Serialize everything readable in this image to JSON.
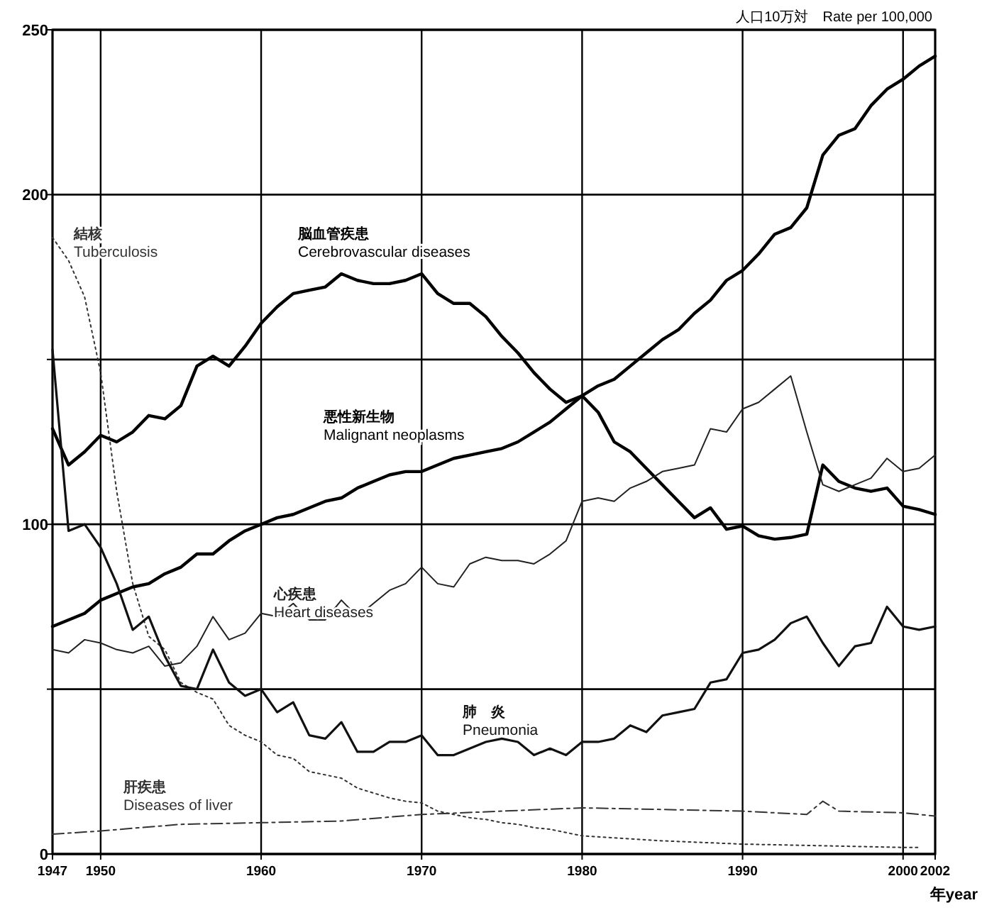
{
  "chart_data": {
    "type": "line",
    "ylabel": "人口10万対　Rate per 100,000",
    "xlabel": "年year",
    "xlim": [
      1947,
      2002
    ],
    "xticks": [
      1947,
      1950,
      1960,
      1970,
      1980,
      1990,
      2000,
      2002
    ],
    "ylim": [
      0,
      250
    ],
    "yticks": [
      0,
      {
        "value": 50,
        "label": null
      },
      100,
      {
        "value": 150,
        "label": null
      },
      200,
      250
    ],
    "grid": true,
    "legend": false,
    "marker": "none",
    "series": [
      {
        "name": "結核\nTuberculosis",
        "color": "#333333",
        "line_style": "dotted",
        "x": [
          1947,
          1948,
          1949,
          1950,
          1951,
          1952,
          1953,
          1954,
          1955,
          1956,
          1957,
          1958,
          1959,
          1960,
          1961,
          1962,
          1963,
          1964,
          1965,
          1966,
          1967,
          1968,
          1969,
          1970,
          1971,
          1972,
          1973,
          1974,
          1975,
          1976,
          1977,
          1978,
          1979,
          1980,
          1985,
          1990,
          1995,
          2000,
          2001
        ],
        "values": [
          187,
          180,
          169,
          146,
          110,
          82,
          66,
          62,
          52,
          49,
          47,
          39,
          36,
          34,
          30,
          29,
          25,
          24,
          23,
          20,
          18.5,
          17,
          16,
          15.5,
          13,
          12,
          11,
          10.5,
          9.5,
          9,
          8,
          7.5,
          6.5,
          5.5,
          4,
          3,
          2.5,
          2,
          2
        ]
      },
      {
        "name": "脳血管疾患\nCerebrovascular diseases",
        "color": "#000000",
        "line_style": "solid",
        "x": [
          1947,
          1948,
          1949,
          1950,
          1951,
          1952,
          1953,
          1954,
          1955,
          1956,
          1957,
          1958,
          1959,
          1960,
          1961,
          1962,
          1963,
          1964,
          1965,
          1966,
          1967,
          1968,
          1969,
          1970,
          1971,
          1972,
          1973,
          1974,
          1975,
          1976,
          1977,
          1978,
          1979,
          1980,
          1981,
          1982,
          1983,
          1984,
          1985,
          1986,
          1987,
          1988,
          1989,
          1990,
          1991,
          1992,
          1993,
          1994,
          1995,
          1996,
          1997,
          1998,
          1999,
          2000,
          2001,
          2002
        ],
        "values": [
          129,
          118,
          122,
          127,
          125,
          128,
          133,
          132,
          136,
          148,
          151,
          148,
          154,
          161,
          166,
          170,
          171,
          172,
          176,
          174,
          173,
          173,
          174,
          176,
          170,
          167,
          167,
          163,
          157,
          152,
          146,
          141,
          137,
          139,
          134,
          125,
          122,
          117,
          112,
          107,
          102,
          105,
          98.5,
          99.5,
          96.5,
          95.5,
          96,
          97,
          118,
          113,
          111,
          110,
          111,
          105.5,
          104.5,
          103
        ]
      },
      {
        "name": "悪性新生物\nMalignant neoplasms",
        "color": "#000000",
        "line_style": "solid",
        "x": [
          1947,
          1948,
          1949,
          1950,
          1951,
          1952,
          1953,
          1954,
          1955,
          1956,
          1957,
          1958,
          1959,
          1960,
          1961,
          1962,
          1963,
          1964,
          1965,
          1966,
          1967,
          1968,
          1969,
          1970,
          1971,
          1972,
          1973,
          1974,
          1975,
          1976,
          1977,
          1978,
          1979,
          1980,
          1981,
          1982,
          1983,
          1984,
          1985,
          1986,
          1987,
          1988,
          1989,
          1990,
          1991,
          1992,
          1993,
          1994,
          1995,
          1996,
          1997,
          1998,
          1999,
          2000,
          2001,
          2002
        ],
        "values": [
          69,
          71,
          73,
          77,
          79,
          81,
          82,
          85,
          87,
          91,
          91,
          95,
          98,
          100,
          102,
          103,
          105,
          107,
          108,
          111,
          113,
          115,
          116,
          116,
          118,
          120,
          121,
          122,
          123,
          125,
          128,
          131,
          135,
          139,
          142,
          144,
          148,
          152,
          156,
          159,
          164,
          168,
          174,
          177,
          182,
          188,
          190,
          196,
          212,
          218,
          220,
          227,
          232,
          235,
          239,
          242
        ]
      },
      {
        "name": "心疾患\nHeart diseases",
        "color": "#222222",
        "line_style": "solid",
        "x": [
          1947,
          1948,
          1949,
          1950,
          1951,
          1952,
          1953,
          1954,
          1955,
          1956,
          1957,
          1958,
          1959,
          1960,
          1961,
          1962,
          1963,
          1964,
          1965,
          1966,
          1967,
          1968,
          1969,
          1970,
          1971,
          1972,
          1973,
          1974,
          1975,
          1976,
          1977,
          1978,
          1979,
          1980,
          1981,
          1982,
          1983,
          1984,
          1985,
          1986,
          1987,
          1988,
          1989,
          1990,
          1991,
          1992,
          1993,
          1994,
          1995,
          1996,
          1997,
          1998,
          1999,
          2000,
          2001,
          2002
        ],
        "values": [
          62,
          61,
          65,
          64,
          62,
          61,
          63,
          57,
          58,
          63,
          72,
          65,
          67,
          73,
          72,
          76,
          71,
          71,
          77,
          72,
          76,
          80,
          82,
          87,
          82,
          81,
          88,
          90,
          89,
          89,
          88,
          91,
          95,
          107,
          108,
          107,
          111,
          113,
          116,
          117,
          118,
          129,
          128,
          135,
          137,
          141,
          145,
          128,
          112,
          110,
          112,
          114,
          120,
          116,
          117,
          121
        ]
      },
      {
        "name": "肺　炎\nPneumonia",
        "color": "#111111",
        "line_style": "solid",
        "x": [
          1947,
          1948,
          1949,
          1950,
          1951,
          1952,
          1953,
          1954,
          1955,
          1956,
          1957,
          1958,
          1959,
          1960,
          1961,
          1962,
          1963,
          1964,
          1965,
          1966,
          1967,
          1968,
          1969,
          1970,
          1971,
          1972,
          1973,
          1974,
          1975,
          1976,
          1977,
          1978,
          1979,
          1980,
          1981,
          1982,
          1983,
          1984,
          1985,
          1986,
          1987,
          1988,
          1989,
          1990,
          1991,
          1992,
          1993,
          1994,
          1995,
          1996,
          1997,
          1998,
          1999,
          2000,
          2001,
          2002
        ],
        "values": [
          153,
          98,
          100,
          93,
          82,
          68,
          72,
          60,
          51,
          50,
          62,
          52,
          48,
          50,
          43,
          46,
          36,
          35,
          40,
          31,
          31,
          34,
          34,
          36,
          30,
          30,
          32,
          34,
          35,
          34,
          30,
          32,
          30,
          34,
          34,
          35,
          39,
          37,
          42,
          43,
          44,
          52,
          53,
          61,
          62,
          65,
          70,
          72,
          64,
          57,
          63,
          64,
          75,
          69,
          68,
          69
        ]
      },
      {
        "name": "肝疾患\nDiseases of liver",
        "color": "#333333",
        "line_style": "dashed",
        "x": [
          1947,
          1950,
          1955,
          1960,
          1965,
          1970,
          1975,
          1980,
          1985,
          1990,
          1994,
          1995,
          1996,
          2000,
          2002
        ],
        "values": [
          6,
          7,
          9,
          9.5,
          10,
          12,
          13,
          14,
          13.5,
          13,
          12,
          16,
          13,
          12.5,
          11.5
        ]
      }
    ]
  }
}
